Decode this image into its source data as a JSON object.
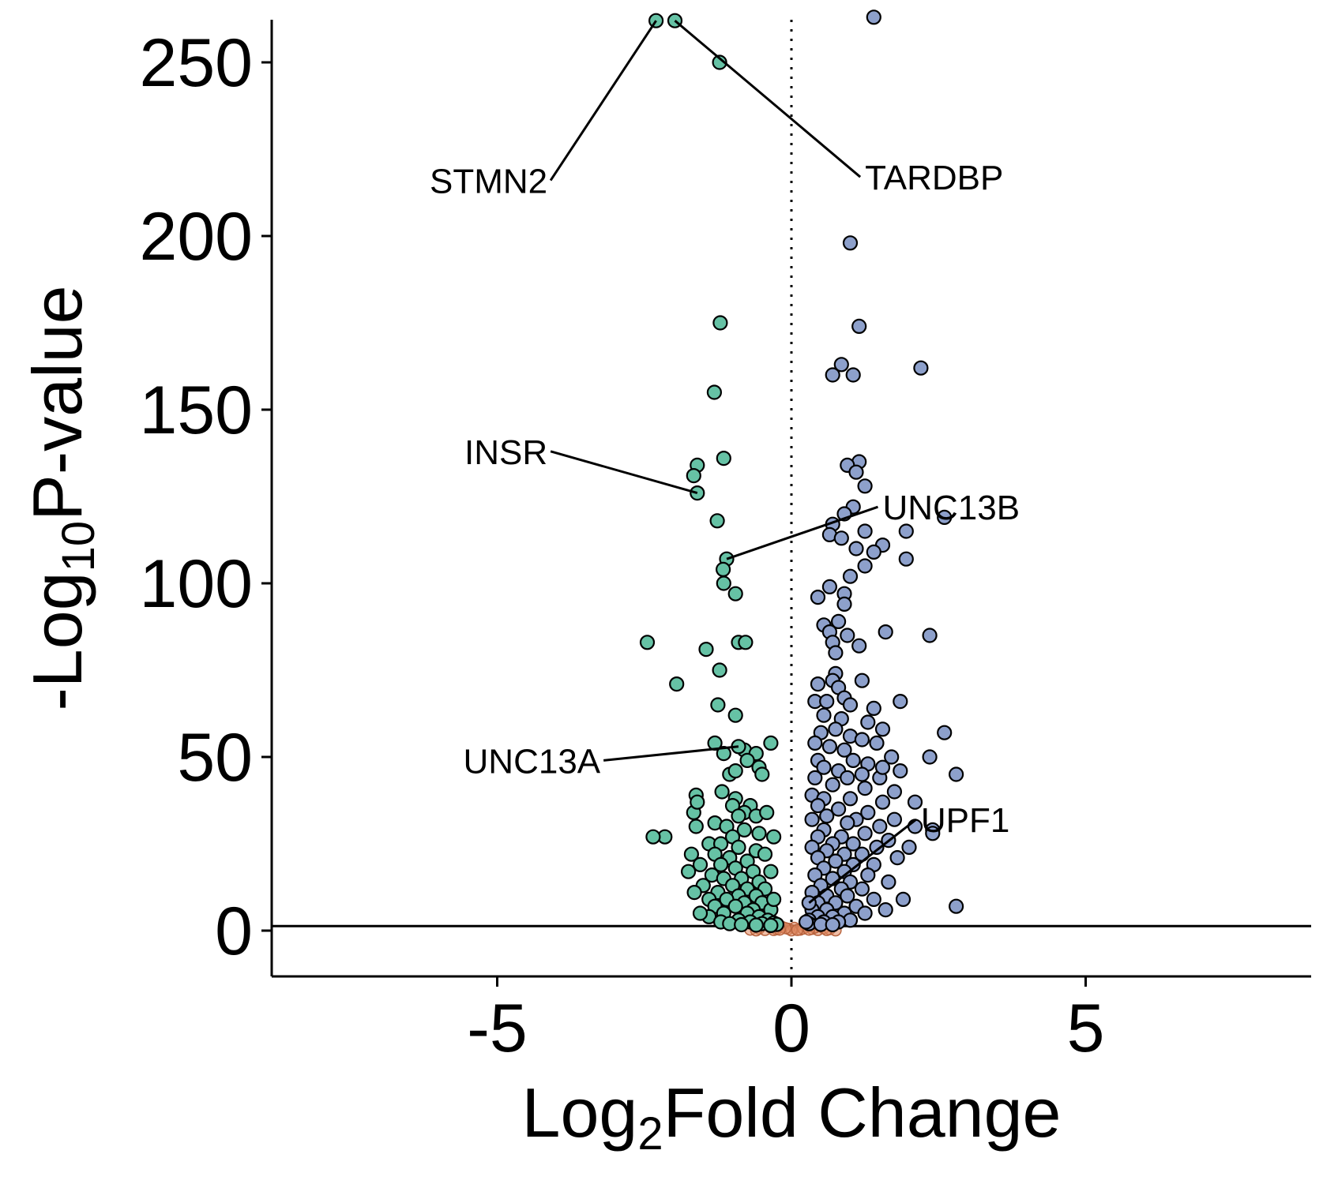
{
  "chart_data": {
    "type": "scatter",
    "title": "",
    "xlabel": "Log2Fold Change",
    "ylabel": "-Log10P-value",
    "xlabel_parts": {
      "pre": "Log",
      "sub": "2",
      "post": "Fold Change"
    },
    "ylabel_parts": {
      "pre": "-Log",
      "sub": "10",
      "post": "P-value"
    },
    "xlim": [
      -8.9,
      8.9
    ],
    "ylim": [
      -12,
      262
    ],
    "x_ticks": [
      -5,
      0,
      5
    ],
    "y_ticks": [
      0,
      50,
      100,
      150,
      200,
      250
    ],
    "x_tick_labels": [
      "-5",
      "0",
      "5"
    ],
    "y_tick_labels": [
      "0",
      "50",
      "100",
      "150",
      "200",
      "250"
    ],
    "grid": false,
    "legend": "none",
    "reference_lines": {
      "vertical_x": 0,
      "vertical_style": "dotted",
      "horizontal_y": 1.3
    },
    "colors": {
      "down": "#66c2a5",
      "up": "#8da0cb",
      "ns": "#e08a63",
      "outline": "#000000"
    },
    "series": [
      {
        "group": "down",
        "points": [
          [
            -2.3,
            262
          ],
          [
            -1.98,
            262
          ],
          [
            -1.22,
            250
          ],
          [
            -1.21,
            175
          ],
          [
            -1.31,
            155
          ],
          [
            -1.15,
            136
          ],
          [
            -1.6,
            134
          ],
          [
            -1.66,
            131
          ],
          [
            -1.6,
            126
          ],
          [
            -1.26,
            118
          ],
          [
            -1.1,
            107
          ],
          [
            -1.16,
            104
          ],
          [
            -1.15,
            100
          ],
          [
            -0.95,
            97
          ],
          [
            -2.45,
            83
          ],
          [
            -0.9,
            83
          ],
          [
            -0.78,
            83
          ],
          [
            -1.45,
            81
          ],
          [
            -1.22,
            75
          ],
          [
            -1.95,
            71
          ],
          [
            -1.25,
            65
          ],
          [
            -0.95,
            62
          ],
          [
            -1.3,
            54
          ],
          [
            -0.8,
            52
          ],
          [
            -0.6,
            51
          ],
          [
            -0.9,
            53
          ],
          [
            -0.35,
            54
          ],
          [
            -1.15,
            51
          ],
          [
            -0.75,
            49
          ],
          [
            -0.55,
            47
          ],
          [
            -1.05,
            45
          ],
          [
            -0.95,
            46
          ],
          [
            -0.5,
            45
          ],
          [
            -1.62,
            39
          ],
          [
            -1.18,
            40
          ],
          [
            -0.95,
            38
          ],
          [
            -0.7,
            36
          ],
          [
            -1.0,
            36
          ],
          [
            -0.8,
            34
          ],
          [
            -1.66,
            34
          ],
          [
            -0.9,
            33
          ],
          [
            -0.6,
            33
          ],
          [
            -0.42,
            34
          ],
          [
            -1.3,
            31
          ],
          [
            -1.1,
            30
          ],
          [
            -1.62,
            30
          ],
          [
            -0.8,
            29
          ],
          [
            -1.0,
            27
          ],
          [
            -0.55,
            28
          ],
          [
            -2.15,
            27
          ],
          [
            -2.35,
            27
          ],
          [
            -1.4,
            25
          ],
          [
            -1.2,
            25
          ],
          [
            -0.9,
            24
          ],
          [
            -0.6,
            23
          ],
          [
            -1.7,
            22
          ],
          [
            -1.3,
            22
          ],
          [
            -1.05,
            21
          ],
          [
            -0.75,
            20
          ],
          [
            -0.45,
            22
          ],
          [
            -1.55,
            19
          ],
          [
            -1.2,
            19
          ],
          [
            -0.95,
            18
          ],
          [
            -0.65,
            17
          ],
          [
            -1.75,
            17
          ],
          [
            -0.35,
            17
          ],
          [
            -1.35,
            16
          ],
          [
            -1.15,
            15
          ],
          [
            -0.85,
            15
          ],
          [
            -0.55,
            14
          ],
          [
            -1.5,
            13
          ],
          [
            -1.0,
            13
          ],
          [
            -0.75,
            12
          ],
          [
            -0.45,
            12
          ],
          [
            -1.25,
            11
          ],
          [
            -1.65,
            11
          ],
          [
            -0.9,
            10
          ],
          [
            -0.6,
            10
          ],
          [
            -1.4,
            9
          ],
          [
            -1.1,
            9
          ],
          [
            -0.8,
            8
          ],
          [
            -0.5,
            8
          ],
          [
            -1.3,
            7
          ],
          [
            -0.95,
            7
          ],
          [
            -0.65,
            6
          ],
          [
            -0.35,
            6
          ],
          [
            -1.15,
            5
          ],
          [
            -0.75,
            5
          ],
          [
            -1.4,
            4
          ],
          [
            -0.55,
            4
          ],
          [
            -0.9,
            3
          ],
          [
            -0.4,
            3
          ],
          [
            -1.2,
            2.5
          ],
          [
            -0.7,
            2.5
          ],
          [
            -0.3,
            2.2
          ],
          [
            -1.05,
            2
          ],
          [
            -0.5,
            2
          ],
          [
            -0.25,
            1.8
          ],
          [
            -0.85,
            1.7
          ],
          [
            -0.6,
            1.6
          ],
          [
            -0.35,
            1.5
          ],
          [
            -1.6,
            37
          ],
          [
            -0.3,
            27
          ],
          [
            -0.3,
            9
          ],
          [
            -1.55,
            5
          ]
        ]
      },
      {
        "group": "up",
        "points": [
          [
            1.4,
            263
          ],
          [
            1.0,
            198
          ],
          [
            1.15,
            174
          ],
          [
            2.2,
            162
          ],
          [
            0.85,
            163
          ],
          [
            0.7,
            160
          ],
          [
            1.05,
            160
          ],
          [
            1.15,
            135
          ],
          [
            0.95,
            134
          ],
          [
            1.1,
            132
          ],
          [
            1.25,
            128
          ],
          [
            1.05,
            122
          ],
          [
            0.9,
            120
          ],
          [
            0.7,
            117
          ],
          [
            2.6,
            119
          ],
          [
            1.95,
            115
          ],
          [
            1.25,
            115
          ],
          [
            0.65,
            114
          ],
          [
            0.85,
            113
          ],
          [
            1.1,
            110
          ],
          [
            1.55,
            111
          ],
          [
            1.4,
            109
          ],
          [
            1.25,
            105
          ],
          [
            1.95,
            107
          ],
          [
            1.0,
            102
          ],
          [
            0.65,
            99
          ],
          [
            0.9,
            97
          ],
          [
            0.45,
            96
          ],
          [
            0.9,
            94
          ],
          [
            0.55,
            88
          ],
          [
            0.8,
            89
          ],
          [
            0.65,
            86
          ],
          [
            0.95,
            85
          ],
          [
            1.6,
            86
          ],
          [
            2.35,
            85
          ],
          [
            0.7,
            83
          ],
          [
            1.15,
            82
          ],
          [
            0.75,
            80
          ],
          [
            0.75,
            74
          ],
          [
            0.45,
            71
          ],
          [
            0.7,
            72
          ],
          [
            0.8,
            70
          ],
          [
            1.2,
            72
          ],
          [
            0.9,
            67
          ],
          [
            1.85,
            66
          ],
          [
            0.4,
            66
          ],
          [
            0.6,
            66
          ],
          [
            1.0,
            65
          ],
          [
            1.4,
            64
          ],
          [
            0.55,
            62
          ],
          [
            0.85,
            61
          ],
          [
            1.3,
            60
          ],
          [
            1.55,
            58
          ],
          [
            0.75,
            58
          ],
          [
            0.5,
            57
          ],
          [
            1.0,
            56
          ],
          [
            2.6,
            57
          ],
          [
            0.4,
            54
          ],
          [
            1.2,
            55
          ],
          [
            1.45,
            54
          ],
          [
            0.65,
            53
          ],
          [
            0.9,
            52
          ],
          [
            1.7,
            50
          ],
          [
            0.45,
            49
          ],
          [
            1.05,
            49
          ],
          [
            2.35,
            50
          ],
          [
            1.3,
            48
          ],
          [
            0.55,
            47
          ],
          [
            0.8,
            46
          ],
          [
            1.2,
            45
          ],
          [
            1.85,
            46
          ],
          [
            2.8,
            45
          ],
          [
            0.4,
            44
          ],
          [
            0.95,
            44
          ],
          [
            1.5,
            44
          ],
          [
            0.7,
            42
          ],
          [
            1.25,
            41
          ],
          [
            1.75,
            40
          ],
          [
            0.35,
            39
          ],
          [
            0.55,
            38
          ],
          [
            1.0,
            38
          ],
          [
            1.55,
            37
          ],
          [
            2.1,
            37
          ],
          [
            0.45,
            36
          ],
          [
            0.8,
            35
          ],
          [
            1.3,
            34
          ],
          [
            0.6,
            33
          ],
          [
            1.1,
            32
          ],
          [
            1.75,
            32
          ],
          [
            0.35,
            32
          ],
          [
            0.95,
            31
          ],
          [
            1.5,
            30
          ],
          [
            2.1,
            30
          ],
          [
            2.4,
            29
          ],
          [
            2.4,
            28
          ],
          [
            0.55,
            29
          ],
          [
            1.25,
            28
          ],
          [
            0.45,
            27
          ],
          [
            0.85,
            27
          ],
          [
            1.65,
            26
          ],
          [
            0.7,
            25
          ],
          [
            1.05,
            25
          ],
          [
            1.45,
            24
          ],
          [
            0.35,
            24
          ],
          [
            0.6,
            23
          ],
          [
            0.9,
            22
          ],
          [
            1.2,
            22
          ],
          [
            1.8,
            21
          ],
          [
            0.45,
            21
          ],
          [
            0.75,
            20
          ],
          [
            1.05,
            19
          ],
          [
            1.4,
            19
          ],
          [
            0.55,
            18
          ],
          [
            0.9,
            17
          ],
          [
            1.3,
            16
          ],
          [
            0.4,
            16
          ],
          [
            0.7,
            15
          ],
          [
            1.0,
            14
          ],
          [
            1.65,
            14
          ],
          [
            0.5,
            13
          ],
          [
            0.85,
            12
          ],
          [
            1.2,
            12
          ],
          [
            0.35,
            11
          ],
          [
            0.6,
            10
          ],
          [
            0.95,
            10
          ],
          [
            1.4,
            9
          ],
          [
            0.45,
            8
          ],
          [
            0.75,
            8
          ],
          [
            1.1,
            7
          ],
          [
            2.8,
            7
          ],
          [
            0.35,
            6
          ],
          [
            0.6,
            6
          ],
          [
            0.9,
            5
          ],
          [
            1.25,
            5
          ],
          [
            0.45,
            4
          ],
          [
            0.7,
            4
          ],
          [
            1.0,
            3
          ],
          [
            0.3,
            3
          ],
          [
            0.55,
            2.5
          ],
          [
            0.8,
            2.5
          ],
          [
            0.3,
            2
          ],
          [
            0.5,
            1.8
          ],
          [
            0.7,
            1.7
          ],
          [
            1.6,
            6
          ],
          [
            1.9,
            9
          ],
          [
            2.0,
            24
          ],
          [
            1.55,
            47
          ],
          [
            0.3,
            8
          ],
          [
            0.25,
            2.5
          ]
        ]
      },
      {
        "group": "ns",
        "points": [
          [
            -0.7,
            0.3
          ],
          [
            -0.55,
            0.6
          ],
          [
            -0.45,
            0.2
          ],
          [
            -0.35,
            0.9
          ],
          [
            -0.25,
            0.4
          ],
          [
            -0.15,
            1.0
          ],
          [
            -0.05,
            0.5
          ],
          [
            0.05,
            0.8
          ],
          [
            0.15,
            0.3
          ],
          [
            0.25,
            1.0
          ],
          [
            0.35,
            0.5
          ],
          [
            0.45,
            0.2
          ],
          [
            0.55,
            0.7
          ],
          [
            0.65,
            0.4
          ],
          [
            0.75,
            0.1
          ],
          [
            -0.6,
            0.1
          ],
          [
            -0.3,
            0.2
          ],
          [
            0.0,
            0.1
          ],
          [
            0.2,
            0.6
          ],
          [
            0.4,
            0.9
          ],
          [
            -0.1,
            0.7
          ],
          [
            0.1,
            0.2
          ],
          [
            -0.2,
            0.3
          ],
          [
            0.3,
            0.3
          ],
          [
            0.6,
            0.2
          ]
        ]
      }
    ],
    "annotations": [
      {
        "label": "STMN2",
        "point": [
          -2.3,
          262
        ],
        "text_at": [
          -4.2,
          216
        ],
        "anchor": "end"
      },
      {
        "label": "TARDBP",
        "point": [
          -1.98,
          262
        ],
        "text_at": [
          1.25,
          217
        ],
        "anchor": "start"
      },
      {
        "label": "INSR",
        "point": [
          -1.6,
          126
        ],
        "text_at": [
          -4.2,
          138
        ],
        "anchor": "end"
      },
      {
        "label": "UNC13B",
        "point": [
          -1.1,
          107
        ],
        "text_at": [
          1.55,
          122
        ],
        "anchor": "start"
      },
      {
        "label": "UNC13A",
        "point": [
          -0.9,
          53
        ],
        "text_at": [
          -3.3,
          49
        ],
        "anchor": "end"
      },
      {
        "label": "UPF1",
        "point": [
          0.3,
          8
        ],
        "text_at": [
          2.2,
          32
        ],
        "anchor": "start"
      }
    ]
  }
}
